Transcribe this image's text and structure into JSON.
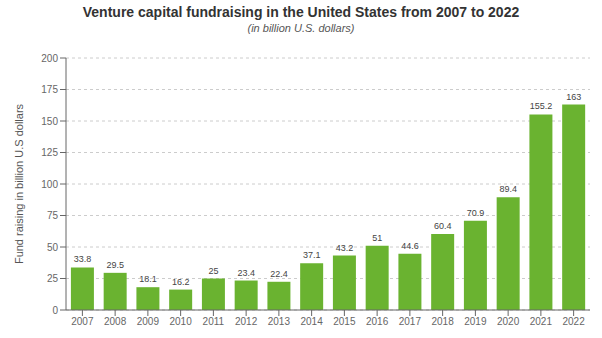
{
  "chart_data": {
    "type": "bar",
    "title": "Venture capital fundraising in the United States from 2007 to 2022",
    "subtitle": "(in billion U.S. dollars)",
    "y_label": "Fund raising in billion U.S dollars",
    "categories": [
      "2007",
      "2008",
      "2009",
      "2010",
      "2011",
      "2012",
      "2013",
      "2014",
      "2015",
      "2016",
      "2017",
      "2018",
      "2019",
      "2020",
      "2021",
      "2022"
    ],
    "values": [
      33.8,
      29.5,
      18.1,
      16.2,
      25,
      23.4,
      22.4,
      37.1,
      43.2,
      51,
      44.6,
      60.4,
      70.9,
      89.4,
      155.2,
      163
    ],
    "color": "#6ab330",
    "ylim": [
      0,
      200
    ],
    "yticks": [
      0,
      25,
      50,
      75,
      100,
      125,
      150,
      175,
      200
    ],
    "grid": true,
    "data_labels": true
  }
}
